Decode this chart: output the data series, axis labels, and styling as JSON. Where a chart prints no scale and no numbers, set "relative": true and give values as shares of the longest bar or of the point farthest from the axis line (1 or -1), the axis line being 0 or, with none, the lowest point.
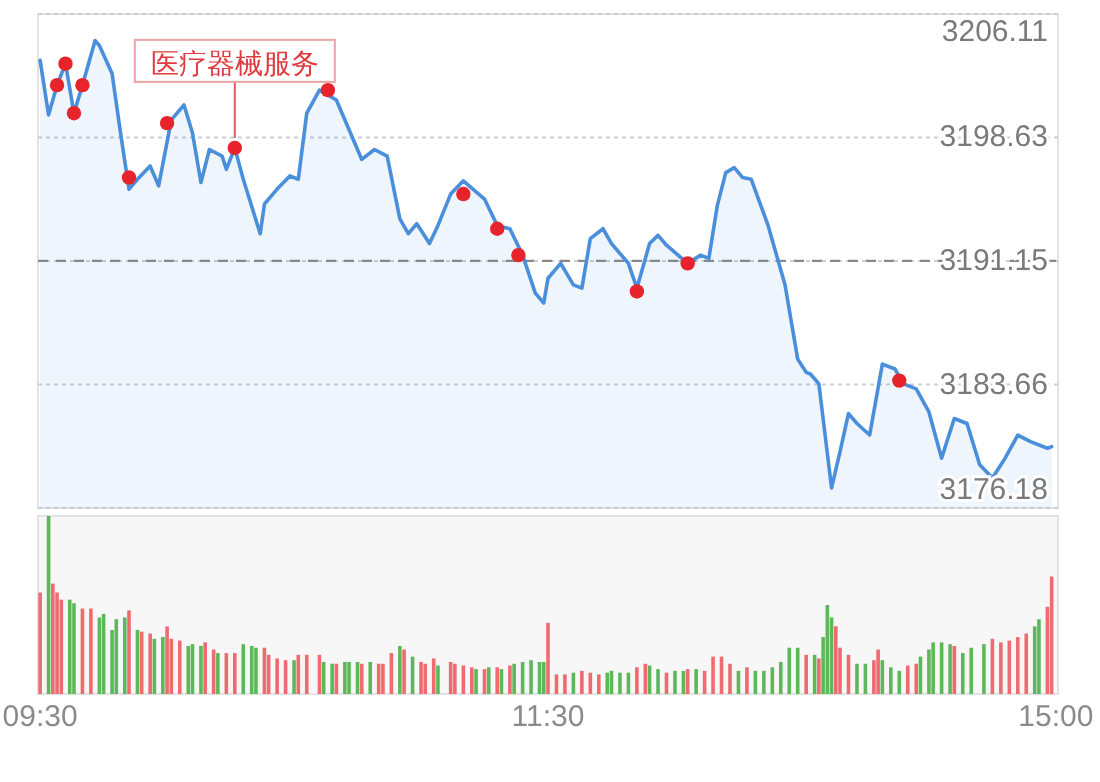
{
  "chart_data": [
    {
      "type": "area",
      "tick_labels": "y",
      "grid": "y",
      "categories": [
        null,
        null,
        null,
        null,
        null,
        null,
        null,
        null,
        null,
        null,
        null,
        null,
        null,
        null,
        null,
        null,
        null,
        null,
        null,
        null,
        null,
        null,
        null,
        null,
        null,
        null,
        null,
        null,
        null,
        null,
        null,
        null,
        null,
        null,
        null,
        null,
        null,
        null,
        null,
        null,
        null,
        null,
        null,
        null,
        null,
        null,
        null,
        null,
        null,
        null,
        null,
        null,
        null,
        null,
        null,
        null,
        null,
        null,
        null,
        null,
        null,
        null,
        null,
        null,
        null,
        null,
        null,
        null,
        null,
        null,
        null,
        null,
        null,
        null,
        null,
        null,
        null,
        null,
        null,
        null,
        null,
        null,
        null,
        null,
        null,
        null,
        null,
        null,
        null,
        null,
        null,
        null,
        null,
        null,
        null,
        null,
        null,
        null,
        null,
        null,
        null,
        null,
        null,
        null,
        null,
        null,
        null,
        null,
        null,
        null,
        null,
        null,
        null,
        null,
        null,
        null,
        null,
        null,
        null,
        null,
        null,
        null,
        null,
        null,
        null,
        null,
        null,
        null,
        null,
        null,
        null,
        null,
        null,
        null,
        null,
        null,
        null,
        null,
        null,
        null,
        null,
        null,
        null,
        null,
        null,
        null,
        null,
        null,
        null,
        null,
        null,
        null,
        null,
        null,
        null,
        null,
        null,
        null,
        null,
        null,
        null,
        null,
        null,
        null,
        null,
        null,
        null,
        null,
        null,
        null,
        null,
        null,
        null,
        null,
        null,
        null,
        null,
        null,
        null,
        null,
        null,
        null,
        null,
        null,
        null,
        null,
        null,
        null,
        null,
        null,
        null,
        null,
        null,
        null,
        null,
        null,
        null,
        null,
        null,
        null,
        null,
        null,
        null,
        null,
        null,
        null,
        null,
        null,
        null,
        null,
        null,
        null,
        null,
        null,
        null,
        null,
        null,
        null,
        null,
        null,
        null,
        null,
        null,
        null,
        null,
        null,
        null,
        null,
        null,
        null,
        null,
        null,
        null,
        null,
        null,
        null,
        null,
        null,
        null,
        null,
        null
      ],
      "ylim": [
        3176.18,
        3206.11
      ],
      "yticks": [
        3176.18,
        3183.66,
        3191.15,
        3198.63,
        3206.11
      ],
      "ref_lines": [
        {
          "axis": "y",
          "value": 3191.15,
          "line_style": "dashed",
          "color": "#888888"
        }
      ],
      "annotations": [
        {
          "text": "医疗器械服务",
          "y": 3198.0
        }
      ],
      "series": [
        {
          "color": "#4a8fdb",
          "values": [
            3203.3,
            null,
            3200.0,
            null,
            3201.8,
            null,
            3203.1,
            null,
            3200.1,
            null,
            3201.8,
            null,
            null,
            3204.5,
            3204.2,
            null,
            null,
            3202.5,
            null,
            3198.9,
            null,
            3195.5,
            null,
            3196.1,
            null,
            null,
            3196.9,
            null,
            3195.7,
            null,
            null,
            3199.7,
            null,
            null,
            3200.6,
            null,
            3198.9,
            null,
            3195.9,
            null,
            3197.9,
            null,
            null,
            3197.5,
            3196.7,
            null,
            3198.0,
            null,
            3196.1,
            null,
            null,
            null,
            3192.8,
            3194.6,
            null,
            null,
            3195.5,
            null,
            null,
            3196.3,
            null,
            3196.1,
            null,
            3200.1,
            null,
            null,
            3201.5,
            null,
            null,
            null,
            3200.9,
            null,
            null,
            3199.1,
            null,
            null,
            3197.3,
            null,
            null,
            3197.9,
            null,
            null,
            3197.5,
            null,
            null,
            3193.7,
            null,
            3192.8,
            null,
            3193.4,
            null,
            null,
            3192.2,
            null,
            3193.3,
            null,
            null,
            3195.2,
            null,
            null,
            3196.0,
            null,
            null,
            null,
            null,
            3194.9,
            null,
            null,
            3193.3,
            null,
            null,
            3193.1,
            null,
            null,
            3191.5,
            null,
            null,
            3189.2,
            null,
            3188.6,
            3190.1,
            null,
            null,
            3191.0,
            null,
            null,
            3189.7,
            null,
            3189.5,
            null,
            3192.5,
            null,
            null,
            3193.1,
            null,
            3192.2,
            null,
            null,
            null,
            3191.0,
            null,
            3189.5,
            null,
            null,
            3192.2,
            null,
            3192.7,
            null,
            3192.1,
            null,
            null,
            null,
            null,
            3191.0,
            null,
            null,
            3191.5,
            null,
            3191.3,
            null,
            3194.5,
            null,
            3196.5,
            null,
            3196.8,
            null,
            3196.2,
            null,
            3196.1,
            null,
            null,
            null,
            3193.3,
            null,
            null,
            null,
            3189.7,
            null,
            null,
            3185.2,
            null,
            3184.4,
            3184.3,
            null,
            3183.7,
            null,
            null,
            3177.4,
            null,
            3179.6,
            null,
            3181.9,
            null,
            3181.3,
            null,
            null,
            3180.6,
            null,
            null,
            3184.9,
            null,
            null,
            3184.6,
            null,
            3183.7,
            null,
            null,
            3183.4,
            null,
            null,
            3182.0,
            null,
            null,
            3179.2,
            null,
            null,
            3181.6,
            null,
            null,
            3181.3,
            null,
            null,
            3178.8,
            null,
            null,
            3178.0,
            null,
            null,
            3179.2,
            null,
            null,
            3180.6,
            null,
            null,
            3180.2,
            null,
            null,
            null,
            3179.8,
            3179.9,
            null
          ]
        },
        {
          "type": "scatter",
          "marker": "circle",
          "color": "#e8232b",
          "values": [
            null,
            null,
            null,
            null,
            3201.8,
            null,
            3203.1,
            null,
            3200.1,
            null,
            3201.8,
            null,
            null,
            null,
            null,
            null,
            null,
            null,
            null,
            null,
            null,
            3196.2,
            null,
            null,
            null,
            null,
            null,
            null,
            null,
            null,
            3199.5,
            null,
            null,
            null,
            null,
            null,
            null,
            null,
            null,
            null,
            null,
            null,
            null,
            null,
            null,
            null,
            3198.0,
            null,
            null,
            null,
            null,
            null,
            null,
            null,
            null,
            null,
            null,
            null,
            null,
            null,
            null,
            null,
            null,
            null,
            null,
            null,
            null,
            null,
            3201.5,
            null,
            null,
            null,
            null,
            null,
            null,
            null,
            null,
            null,
            null,
            null,
            null,
            null,
            null,
            null,
            null,
            null,
            null,
            null,
            null,
            null,
            null,
            null,
            null,
            null,
            null,
            null,
            null,
            null,
            null,
            null,
            3195.2,
            null,
            null,
            null,
            null,
            null,
            null,
            null,
            3193.1,
            null,
            null,
            null,
            null,
            3191.5,
            null,
            null,
            null,
            null,
            null,
            null,
            null,
            null,
            null,
            null,
            null,
            null,
            null,
            null,
            null,
            null,
            null,
            null,
            null,
            null,
            null,
            null,
            null,
            null,
            null,
            null,
            null,
            3189.3,
            null,
            null,
            null,
            null,
            null,
            null,
            null,
            null,
            null,
            null,
            null,
            3191.0,
            null,
            null,
            null,
            null,
            null,
            null,
            null,
            null,
            null,
            null,
            null,
            null,
            null,
            null,
            null,
            null,
            null,
            null,
            null,
            null,
            null,
            null,
            null,
            null,
            null,
            null,
            null,
            null,
            null,
            null,
            null,
            null,
            null,
            null,
            null,
            null,
            null,
            null,
            null,
            null,
            null,
            null,
            null,
            null,
            null,
            null,
            null,
            null,
            null,
            3183.9,
            null,
            null,
            null,
            null,
            null,
            null,
            null,
            null,
            null,
            null,
            null,
            null,
            null,
            null,
            null,
            null,
            null,
            null,
            null,
            null,
            null,
            null,
            null,
            null,
            null,
            null,
            null,
            null,
            null,
            null,
            null,
            null,
            null,
            null,
            null,
            null,
            null
          ]
        }
      ]
    },
    {
      "type": "bar",
      "relative": true,
      "tick_labels": "x",
      "categories": [
        "09:30",
        null,
        null,
        null,
        null,
        null,
        null,
        null,
        null,
        null,
        null,
        null,
        null,
        null,
        null,
        null,
        null,
        null,
        null,
        null,
        null,
        null,
        null,
        null,
        null,
        null,
        null,
        null,
        null,
        null,
        null,
        null,
        null,
        null,
        null,
        null,
        null,
        null,
        null,
        null,
        null,
        null,
        null,
        null,
        null,
        null,
        null,
        null,
        null,
        null,
        null,
        null,
        null,
        null,
        null,
        null,
        null,
        null,
        null,
        null,
        null,
        null,
        null,
        null,
        null,
        null,
        null,
        null,
        null,
        null,
        null,
        null,
        null,
        null,
        null,
        null,
        null,
        null,
        null,
        null,
        null,
        null,
        null,
        null,
        null,
        null,
        null,
        null,
        null,
        null,
        null,
        null,
        null,
        null,
        null,
        null,
        null,
        null,
        null,
        null,
        null,
        null,
        null,
        null,
        null,
        null,
        null,
        null,
        null,
        null,
        null,
        null,
        null,
        null,
        null,
        null,
        null,
        null,
        null,
        null,
        "11:30",
        null,
        null,
        null,
        null,
        null,
        null,
        null,
        null,
        null,
        null,
        null,
        null,
        null,
        null,
        null,
        null,
        null,
        null,
        null,
        null,
        null,
        null,
        null,
        null,
        null,
        null,
        null,
        null,
        null,
        null,
        null,
        null,
        null,
        null,
        null,
        null,
        null,
        null,
        null,
        null,
        null,
        null,
        null,
        null,
        null,
        null,
        null,
        null,
        null,
        null,
        null,
        null,
        null,
        null,
        null,
        null,
        null,
        null,
        null,
        null,
        null,
        null,
        null,
        null,
        null,
        null,
        null,
        null,
        null,
        null,
        null,
        null,
        null,
        null,
        null,
        null,
        null,
        null,
        null,
        null,
        null,
        null,
        null,
        null,
        null,
        null,
        null,
        null,
        null,
        null,
        null,
        null,
        null,
        null,
        null,
        null,
        null,
        null,
        null,
        null,
        null,
        null,
        null,
        null,
        null,
        null,
        null,
        null,
        null,
        null,
        null,
        null,
        null,
        null,
        null,
        null,
        null,
        null,
        null,
        "15:00"
      ],
      "values": [
        0.57,
        null,
        1.0,
        0.62,
        0.57,
        0.53,
        null,
        0.53,
        0.51,
        null,
        0.48,
        null,
        0.48,
        null,
        0.43,
        0.45,
        null,
        0.36,
        0.42,
        null,
        0.43,
        0.47,
        null,
        0.36,
        0.35,
        null,
        0.34,
        0.31,
        null,
        0.32,
        0.38,
        0.31,
        null,
        0.3,
        null,
        0.27,
        0.28,
        null,
        0.27,
        0.29,
        null,
        0.25,
        0.23,
        null,
        0.23,
        null,
        0.23,
        null,
        0.28,
        null,
        0.27,
        0.26,
        null,
        0.26,
        0.22,
        null,
        0.2,
        null,
        0.19,
        null,
        0.19,
        0.22,
        null,
        0.22,
        null,
        null,
        0.22,
        0.18,
        null,
        0.17,
        0.17,
        null,
        0.18,
        0.18,
        null,
        0.18,
        0.17,
        null,
        0.18,
        null,
        0.17,
        0.17,
        null,
        0.23,
        null,
        0.27,
        0.25,
        null,
        0.21,
        null,
        0.18,
        0.17,
        null,
        0.2,
        0.16,
        null,
        null,
        0.18,
        0.17,
        null,
        0.16,
        null,
        0.15,
        0.14,
        null,
        0.14,
        0.15,
        null,
        0.15,
        0.14,
        null,
        0.16,
        0.17,
        null,
        0.18,
        null,
        0.19,
        null,
        0.18,
        0.18,
        0.4,
        null,
        0.11,
        null,
        0.11,
        null,
        0.12,
        null,
        0.13,
        null,
        0.12,
        null,
        0.11,
        null,
        0.12,
        0.13,
        null,
        0.12,
        null,
        0.12,
        null,
        0.15,
        null,
        0.17,
        0.16,
        null,
        0.14,
        null,
        0.12,
        null,
        0.13,
        null,
        0.13,
        0.14,
        null,
        0.14,
        null,
        0.13,
        null,
        0.21,
        null,
        0.21,
        null,
        0.17,
        null,
        0.13,
        null,
        0.15,
        null,
        0.13,
        null,
        0.13,
        null,
        0.15,
        null,
        0.18,
        null,
        0.26,
        null,
        0.26,
        null,
        0.22,
        null,
        0.22,
        0.2,
        0.32,
        0.5,
        0.43,
        0.38,
        0.26,
        null,
        0.22,
        null,
        0.17,
        null,
        0.17,
        null,
        0.19,
        0.25,
        0.19,
        null,
        0.15,
        null,
        0.13,
        null,
        0.16,
        null,
        0.17,
        0.21,
        null,
        0.25,
        0.29,
        null,
        0.29,
        null,
        0.28,
        0.27,
        null,
        0.23,
        null,
        0.26,
        null,
        null,
        0.28,
        null,
        0.31,
        null,
        0.29,
        null,
        0.3,
        null,
        0.32,
        null,
        0.34,
        null,
        0.38,
        0.42,
        null,
        0.49,
        0.66,
        null
      ],
      "colors": [
        "#ef6b70",
        null,
        "#5db85a",
        "#ef6b70",
        "#ef6b70",
        "#ef6b70",
        null,
        "#5db85a",
        "#5db85a",
        null,
        "#ef6b70",
        null,
        "#ef6b70",
        null,
        "#5db85a",
        "#5db85a",
        null,
        "#5db85a",
        "#5db85a",
        null,
        "#5db85a",
        "#ef6b70",
        null,
        "#5db85a",
        "#ef6b70",
        null,
        "#ef6b70",
        "#5db85a",
        null,
        "#5db85a",
        "#ef6b70",
        "#ef6b70",
        null,
        "#ef6b70",
        null,
        "#5db85a",
        "#5db85a",
        null,
        "#5db85a",
        "#ef6b70",
        null,
        "#ef6b70",
        "#5db85a",
        null,
        "#ef6b70",
        null,
        "#ef6b70",
        null,
        "#5db85a",
        null,
        "#5db85a",
        "#5db85a",
        null,
        "#ef6b70",
        "#ef6b70",
        null,
        "#ef6b70",
        null,
        "#ef6b70",
        null,
        "#5db85a",
        "#ef6b70",
        null,
        "#ef6b70",
        null,
        null,
        "#ef6b70",
        "#5db85a",
        null,
        "#5db85a",
        "#ef6b70",
        null,
        "#5db85a",
        "#5db85a",
        null,
        "#5db85a",
        "#ef6b70",
        null,
        "#5db85a",
        null,
        "#ef6b70",
        "#ef6b70",
        null,
        "#ef6b70",
        null,
        "#5db85a",
        "#ef6b70",
        null,
        "#5db85a",
        null,
        "#ef6b70",
        "#ef6b70",
        null,
        "#ef6b70",
        "#5db85a",
        null,
        null,
        "#ef6b70",
        "#ef6b70",
        null,
        "#ef6b70",
        null,
        "#ef6b70",
        "#5db85a",
        null,
        "#ef6b70",
        "#5db85a",
        null,
        "#ef6b70",
        "#5db85a",
        null,
        "#ef6b70",
        "#5db85a",
        null,
        "#5db85a",
        null,
        "#5db85a",
        null,
        "#5db85a",
        "#5db85a",
        "#ef6b70",
        null,
        "#ef6b70",
        null,
        "#ef6b70",
        null,
        "#5db85a",
        null,
        "#ef6b70",
        null,
        "#ef6b70",
        null,
        "#ef6b70",
        null,
        "#5db85a",
        "#5db85a",
        null,
        "#5db85a",
        null,
        "#5db85a",
        null,
        "#ef6b70",
        null,
        "#ef6b70",
        "#5db85a",
        null,
        "#5db85a",
        null,
        "#ef6b70",
        null,
        "#5db85a",
        null,
        "#5db85a",
        "#ef6b70",
        null,
        "#5db85a",
        null,
        "#ef6b70",
        null,
        "#ef6b70",
        null,
        "#ef6b70",
        null,
        "#ef6b70",
        null,
        "#5db85a",
        null,
        "#ef6b70",
        null,
        "#5db85a",
        null,
        "#5db85a",
        null,
        "#5db85a",
        null,
        "#5db85a",
        null,
        "#5db85a",
        null,
        "#5db85a",
        null,
        "#ef6b70",
        null,
        "#5db85a",
        "#ef6b70",
        "#5db85a",
        "#5db85a",
        "#5db85a",
        "#ef6b70",
        "#ef6b70",
        null,
        "#ef6b70",
        null,
        "#5db85a",
        null,
        "#5db85a",
        null,
        "#ef6b70",
        "#ef6b70",
        "#5db85a",
        null,
        "#5db85a",
        null,
        "#5db85a",
        null,
        "#ef6b70",
        null,
        "#ef6b70",
        "#5db85a",
        null,
        "#5db85a",
        "#5db85a",
        null,
        "#5db85a",
        null,
        "#5db85a",
        "#ef6b70",
        null,
        "#5db85a",
        null,
        "#5db85a",
        null,
        null,
        "#5db85a",
        null,
        "#ef6b70",
        null,
        "#ef6b70",
        null,
        "#ef6b70",
        null,
        "#ef6b70",
        null,
        "#ef6b70",
        null,
        "#5db85a",
        "#5db85a",
        null,
        "#ef6b70",
        "#ef6b70",
        null
      ]
    }
  ]
}
